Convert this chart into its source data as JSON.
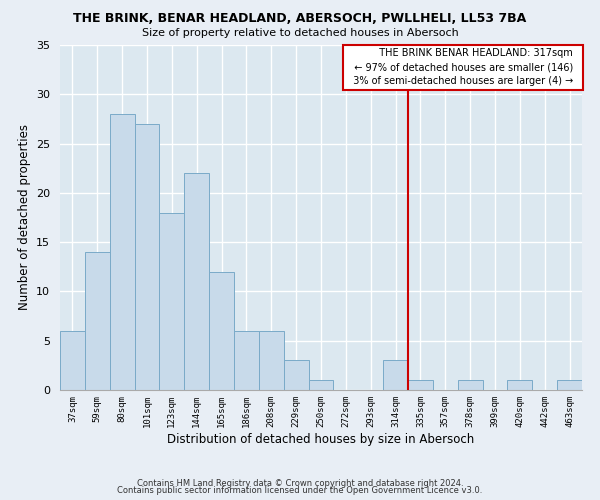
{
  "title": "THE BRINK, BENAR HEADLAND, ABERSOCH, PWLLHELI, LL53 7BA",
  "subtitle": "Size of property relative to detached houses in Abersoch",
  "xlabel": "Distribution of detached houses by size in Abersoch",
  "ylabel": "Number of detached properties",
  "footer_line1": "Contains HM Land Registry data © Crown copyright and database right 2024.",
  "footer_line2": "Contains public sector information licensed under the Open Government Licence v3.0.",
  "bin_labels": [
    "37sqm",
    "59sqm",
    "80sqm",
    "101sqm",
    "123sqm",
    "144sqm",
    "165sqm",
    "186sqm",
    "208sqm",
    "229sqm",
    "250sqm",
    "272sqm",
    "293sqm",
    "314sqm",
    "335sqm",
    "357sqm",
    "378sqm",
    "399sqm",
    "420sqm",
    "442sqm",
    "463sqm"
  ],
  "bar_heights": [
    6,
    14,
    28,
    27,
    18,
    22,
    12,
    6,
    6,
    3,
    1,
    0,
    0,
    3,
    1,
    0,
    1,
    0,
    1,
    0,
    1
  ],
  "bar_color": "#c8daea",
  "bar_edge_color": "#7aaac8",
  "highlight_line_color": "#cc0000",
  "ylim": [
    0,
    35
  ],
  "yticks": [
    0,
    5,
    10,
    15,
    20,
    25,
    30,
    35
  ],
  "annotation_title": "THE BRINK BENAR HEADLAND: 317sqm",
  "annotation_line1": "← 97% of detached houses are smaller (146)",
  "annotation_line2": "3% of semi-detached houses are larger (4) →",
  "background_color": "#e8eef5",
  "plot_bg_color": "#dce8f0"
}
